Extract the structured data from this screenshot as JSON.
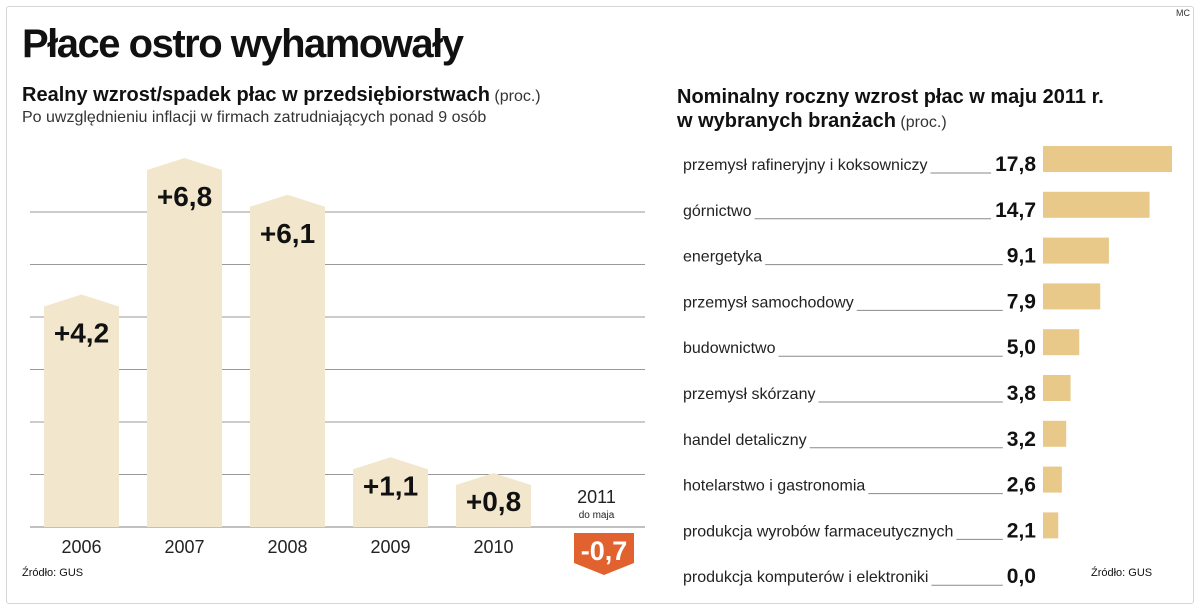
{
  "corner_tag": "MC",
  "title": "Płace ostro wyhamowały",
  "chart_data": [
    {
      "type": "bar",
      "title": "Realny wzrost/spadek płac w przedsiębiorstwach",
      "title_unit": "(proc.)",
      "subtitle": "Po uwzględnieniu inflacji w firmach zatrudniających ponad 9 osób",
      "categories": [
        "2006",
        "2007",
        "2008",
        "2009",
        "2010",
        "2011"
      ],
      "category_notes": [
        "",
        "",
        "",
        "",
        "",
        "do maja"
      ],
      "values": [
        4.2,
        6.8,
        6.1,
        1.1,
        0.8,
        -0.7
      ],
      "value_labels": [
        "+4,2",
        "+6,8",
        "+6,1",
        "+1,1",
        "+0,8",
        "-0,7"
      ],
      "ylim": [
        -1,
        7
      ],
      "grid": true,
      "colors": {
        "positive": "#f2e7cd",
        "negative": "#e2622f",
        "grid": "#9a9a9a"
      },
      "source": "Źródło: GUS"
    },
    {
      "type": "bar",
      "orientation": "horizontal",
      "title": "Nominalny roczny wzrost płac w maju 2011 r.",
      "title_line2": "w wybranych branżach",
      "title_unit": "(proc.)",
      "categories": [
        "przemysł rafineryjny i koksowniczy",
        "górnictwo",
        "energetyka",
        "przemysł samochodowy",
        "budownictwo",
        "przemysł skórzany",
        "handel detaliczny",
        "hotelarstwo i gastronomia",
        "produkcja wyrobów farmaceutycznych",
        "produkcja komputerów i elektroniki"
      ],
      "values": [
        17.8,
        14.7,
        9.1,
        7.9,
        5.0,
        3.8,
        3.2,
        2.6,
        2.1,
        0.0
      ],
      "value_labels": [
        "17,8",
        "14,7",
        "9,1",
        "7,9",
        "5,0",
        "3,8",
        "3,2",
        "2,6",
        "2,1",
        "0,0"
      ],
      "xlim": [
        0,
        17.8
      ],
      "grid": false,
      "colors": {
        "bar": "#e8c98a",
        "leader": "#8a8a8a"
      },
      "source": "Źródło: GUS"
    }
  ]
}
